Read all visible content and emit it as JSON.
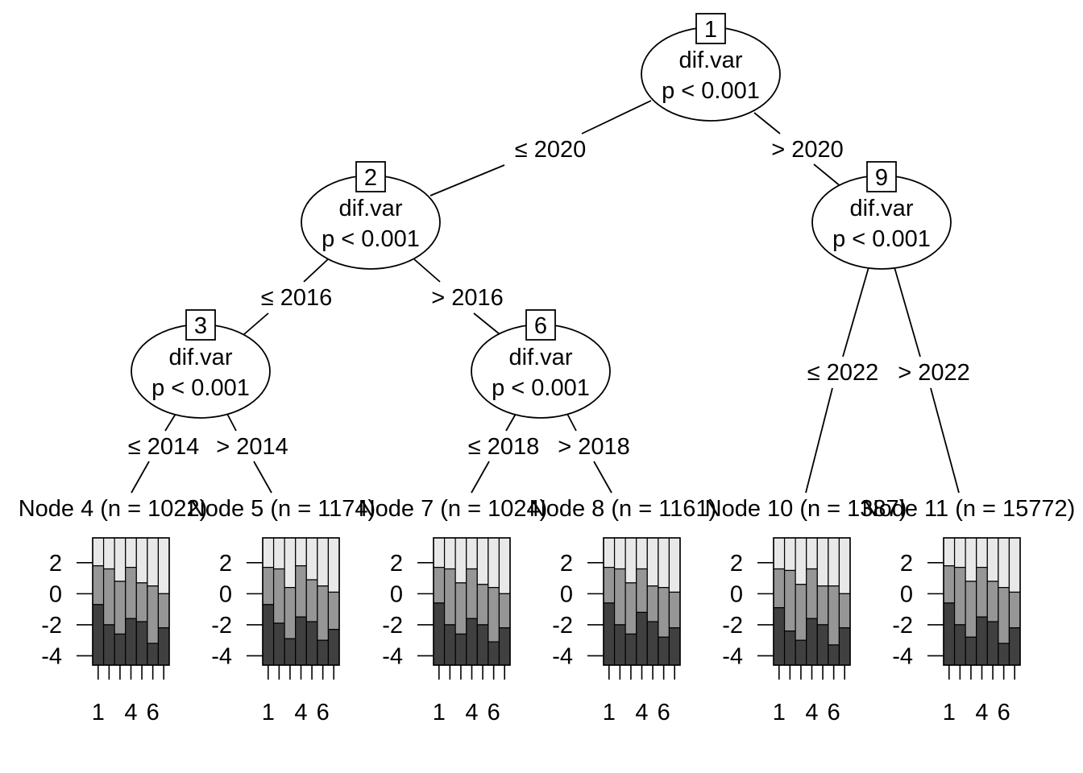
{
  "inner_nodes": [
    {
      "id": "1",
      "variable": "dif.var",
      "pvalue": "p < 0.001"
    },
    {
      "id": "2",
      "variable": "dif.var",
      "pvalue": "p < 0.001"
    },
    {
      "id": "3",
      "variable": "dif.var",
      "pvalue": "p < 0.001"
    },
    {
      "id": "6",
      "variable": "dif.var",
      "pvalue": "p < 0.001"
    },
    {
      "id": "9",
      "variable": "dif.var",
      "pvalue": "p < 0.001"
    }
  ],
  "edges": [
    {
      "label": "≤ 2020"
    },
    {
      "label": "> 2020"
    },
    {
      "label": "≤ 2016"
    },
    {
      "label": "> 2016"
    },
    {
      "label": "≤ 2014"
    },
    {
      "label": "> 2014"
    },
    {
      "label": "≤ 2018"
    },
    {
      "label": "> 2018"
    },
    {
      "label": "≤ 2022"
    },
    {
      "label": "> 2022"
    }
  ],
  "terminal_nodes": [
    {
      "title": "Node 4 (n = 1022)",
      "tops": [
        -0.7,
        -2.0,
        -2.6,
        -1.6,
        -1.8,
        -3.2,
        -2.2
      ],
      "mids": [
        1.8,
        1.6,
        0.8,
        1.7,
        0.7,
        0.5,
        0.0
      ]
    },
    {
      "title": "Node 5 (n = 1174)",
      "tops": [
        -0.7,
        -1.9,
        -2.9,
        -1.5,
        -1.8,
        -3.0,
        -2.3
      ],
      "mids": [
        1.7,
        1.6,
        0.4,
        1.8,
        0.9,
        0.5,
        0.1
      ]
    },
    {
      "title": "Node 7 (n = 1024)",
      "tops": [
        -0.6,
        -2.0,
        -2.6,
        -1.6,
        -2.0,
        -3.1,
        -2.2
      ],
      "mids": [
        1.7,
        1.6,
        0.7,
        1.6,
        0.6,
        0.4,
        0.0
      ]
    },
    {
      "title": "Node 8 (n = 1161)",
      "tops": [
        -0.6,
        -2.0,
        -2.6,
        -1.2,
        -1.8,
        -2.8,
        -2.2
      ],
      "mids": [
        1.7,
        1.6,
        0.7,
        1.6,
        0.5,
        0.4,
        0.1
      ]
    },
    {
      "title": "Node 10 (n = 1387)",
      "tops": [
        -0.9,
        -2.4,
        -3.0,
        -1.6,
        -2.0,
        -3.3,
        -2.2
      ],
      "mids": [
        1.6,
        1.5,
        0.6,
        1.6,
        0.5,
        0.5,
        0.0
      ]
    },
    {
      "title": "Node 11 (n = 15772)",
      "tops": [
        -0.6,
        -2.0,
        -2.8,
        -1.5,
        -1.8,
        -3.2,
        -2.2
      ],
      "mids": [
        1.8,
        1.7,
        0.8,
        1.7,
        0.8,
        0.4,
        0.1
      ]
    }
  ],
  "bar_plot": {
    "y_ticks": [
      "2",
      "0",
      "-2",
      "-4"
    ],
    "x_ticks": [
      "1",
      "4",
      "6"
    ],
    "ylim": [
      -4.6,
      3.6
    ],
    "colors": {
      "dark": "#404040",
      "mid": "#969696",
      "light": "#e8e8e8"
    }
  }
}
